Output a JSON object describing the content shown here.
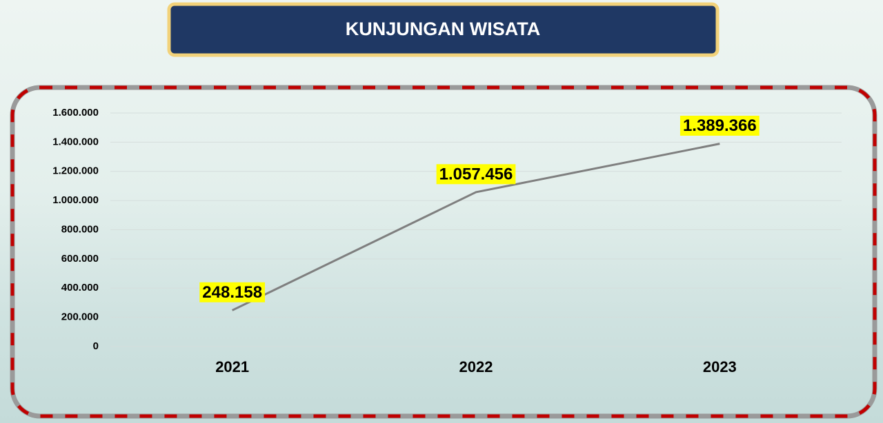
{
  "chart_data": {
    "type": "line",
    "title": "KUNJUNGAN WISATA",
    "categories": [
      "2021",
      "2022",
      "2023"
    ],
    "series": [
      {
        "color": "#7f7f7f",
        "values": [
          248158,
          1057456,
          1389366
        ],
        "value_labels": [
          "248.158",
          "1.057.456",
          "1.389.366"
        ]
      }
    ],
    "ylim": [
      0,
      1600000
    ],
    "yticks": [
      0,
      {
        "value": 200000,
        "label": "200.000"
      },
      {
        "value": 400000,
        "label": "400.000"
      },
      {
        "value": 600000,
        "label": "600.000"
      },
      {
        "value": 800000,
        "label": "800.000"
      },
      {
        "value": 1000000,
        "label": "1.000.000"
      },
      {
        "value": 1200000,
        "label": "1.200.000"
      },
      {
        "value": 1400000,
        "label": "1.400.000"
      },
      {
        "value": 1600000,
        "label": "1.600.000"
      }
    ],
    "grid": true
  }
}
